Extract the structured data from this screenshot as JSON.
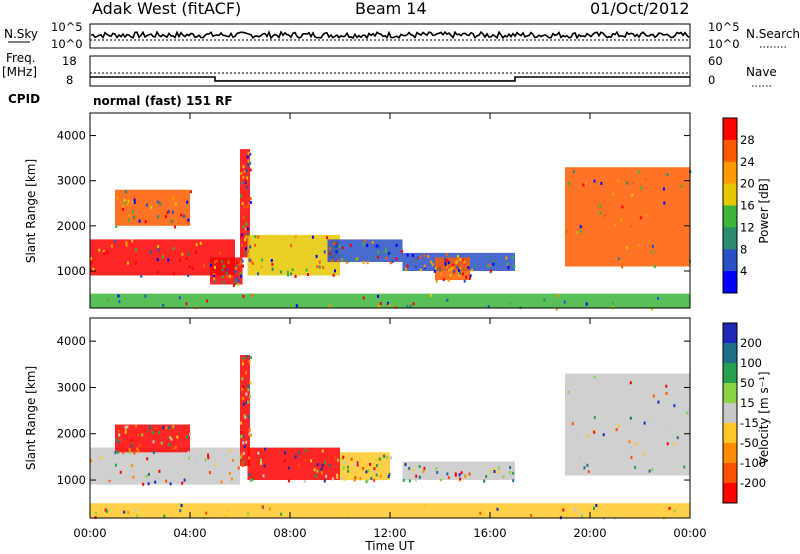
{
  "header": {
    "station": "Adak West (fitACF)",
    "beam": "Beam 14",
    "date": "01/Oct/2012"
  },
  "noise_panel": {
    "left_label": "N.Sky",
    "right_label": "N.Search",
    "left_ticks": [
      "10^5",
      "10^0"
    ],
    "right_ticks": [
      "10^5",
      "10^0"
    ]
  },
  "freq_panel": {
    "left_label_top": "Freq.",
    "left_label_unit": "[MHz]",
    "right_label": "Nave",
    "left_ticks": [
      "18",
      "8"
    ],
    "right_ticks": [
      "60",
      "0"
    ]
  },
  "cpid": {
    "label": "CPID",
    "text": "normal (fast) 151 RF"
  },
  "power_panel": {
    "ylabel": "Slant Range [km]",
    "colorbar_label": "Power [dB]",
    "colorbar_ticks": [
      "28",
      "24",
      "20",
      "16",
      "12",
      "8",
      "4"
    ],
    "colorbar_colors": [
      "#ff0000",
      "#ff5a00",
      "#ff9a00",
      "#e6c800",
      "#3cb43c",
      "#2d8a6e",
      "#2a50c8",
      "#0000ff"
    ]
  },
  "velocity_panel": {
    "ylabel": "Slant Range [km]",
    "colorbar_label": "Velocity [m s⁻¹]",
    "colorbar_ticks": [
      "200",
      "100",
      "50",
      "15",
      "-15",
      "-50",
      "-100",
      "-200"
    ],
    "colorbar_colors": [
      "#1e28b4",
      "#1e6e8c",
      "#28a050",
      "#8cd246",
      "#c8c8c8",
      "#ffc828",
      "#ff8c00",
      "#ff5000",
      "#ff0000"
    ]
  },
  "xaxis": {
    "ticks": [
      "00:00",
      "04:00",
      "08:00",
      "12:00",
      "16:00",
      "20:00",
      "00:00"
    ],
    "label": "Time UT"
  },
  "chart_data": {
    "type": "heatmap",
    "x_range_hours": [
      0,
      24
    ],
    "y_range_km": [
      180,
      4500
    ],
    "y_ticks_km": [
      1000,
      2000,
      3000,
      4000
    ],
    "freq_mhz": [
      {
        "t": 0,
        "f": 11
      },
      {
        "t": 5,
        "f": 11
      },
      {
        "t": 5,
        "f": 9.7
      },
      {
        "t": 17,
        "f": 9.7
      },
      {
        "t": 17,
        "f": 11
      },
      {
        "t": 24,
        "f": 11
      }
    ],
    "power_bands": [
      {
        "t0": 0.0,
        "t1": 5.8,
        "r0": 900,
        "r1": 1700,
        "level": 0
      },
      {
        "t0": 1.0,
        "t1": 4.0,
        "r0": 2000,
        "r1": 2800,
        "level": 1
      },
      {
        "t0": 4.8,
        "t1": 6.1,
        "r0": 700,
        "r1": 1300,
        "level": 0
      },
      {
        "t0": 6.0,
        "t1": 6.4,
        "r0": 1300,
        "r1": 3700,
        "level": 0
      },
      {
        "t0": 6.3,
        "t1": 10.0,
        "r0": 900,
        "r1": 1800,
        "level": 3
      },
      {
        "t0": 9.5,
        "t1": 12.5,
        "r0": 1200,
        "r1": 1700,
        "level": 6
      },
      {
        "t0": 12.5,
        "t1": 17.0,
        "r0": 1000,
        "r1": 1400,
        "level": 6
      },
      {
        "t0": 13.8,
        "t1": 15.2,
        "r0": 800,
        "r1": 1300,
        "level": 1
      },
      {
        "t0": 19.0,
        "t1": 24.0,
        "r0": 1100,
        "r1": 3300,
        "level": 1
      },
      {
        "t0": 0.0,
        "t1": 24.0,
        "r0": 180,
        "r1": 500,
        "level": 4
      }
    ],
    "velocity_bands": [
      {
        "t0": 0.0,
        "t1": 6.0,
        "r0": 900,
        "r1": 1700,
        "level": 4
      },
      {
        "t0": 1.0,
        "t1": 4.0,
        "r0": 1600,
        "r1": 2200,
        "level": 8
      },
      {
        "t0": 6.0,
        "t1": 6.4,
        "r0": 1300,
        "r1": 3700,
        "level": 8
      },
      {
        "t0": 6.3,
        "t1": 10.0,
        "r0": 1000,
        "r1": 1700,
        "level": 8
      },
      {
        "t0": 10.0,
        "t1": 12.0,
        "r0": 1000,
        "r1": 1600,
        "level": 5
      },
      {
        "t0": 12.5,
        "t1": 17.0,
        "r0": 1000,
        "r1": 1400,
        "level": 4
      },
      {
        "t0": 19.0,
        "t1": 24.0,
        "r0": 1100,
        "r1": 3300,
        "level": 4
      },
      {
        "t0": 0.0,
        "t1": 24.0,
        "r0": 180,
        "r1": 500,
        "level": 5
      }
    ]
  }
}
